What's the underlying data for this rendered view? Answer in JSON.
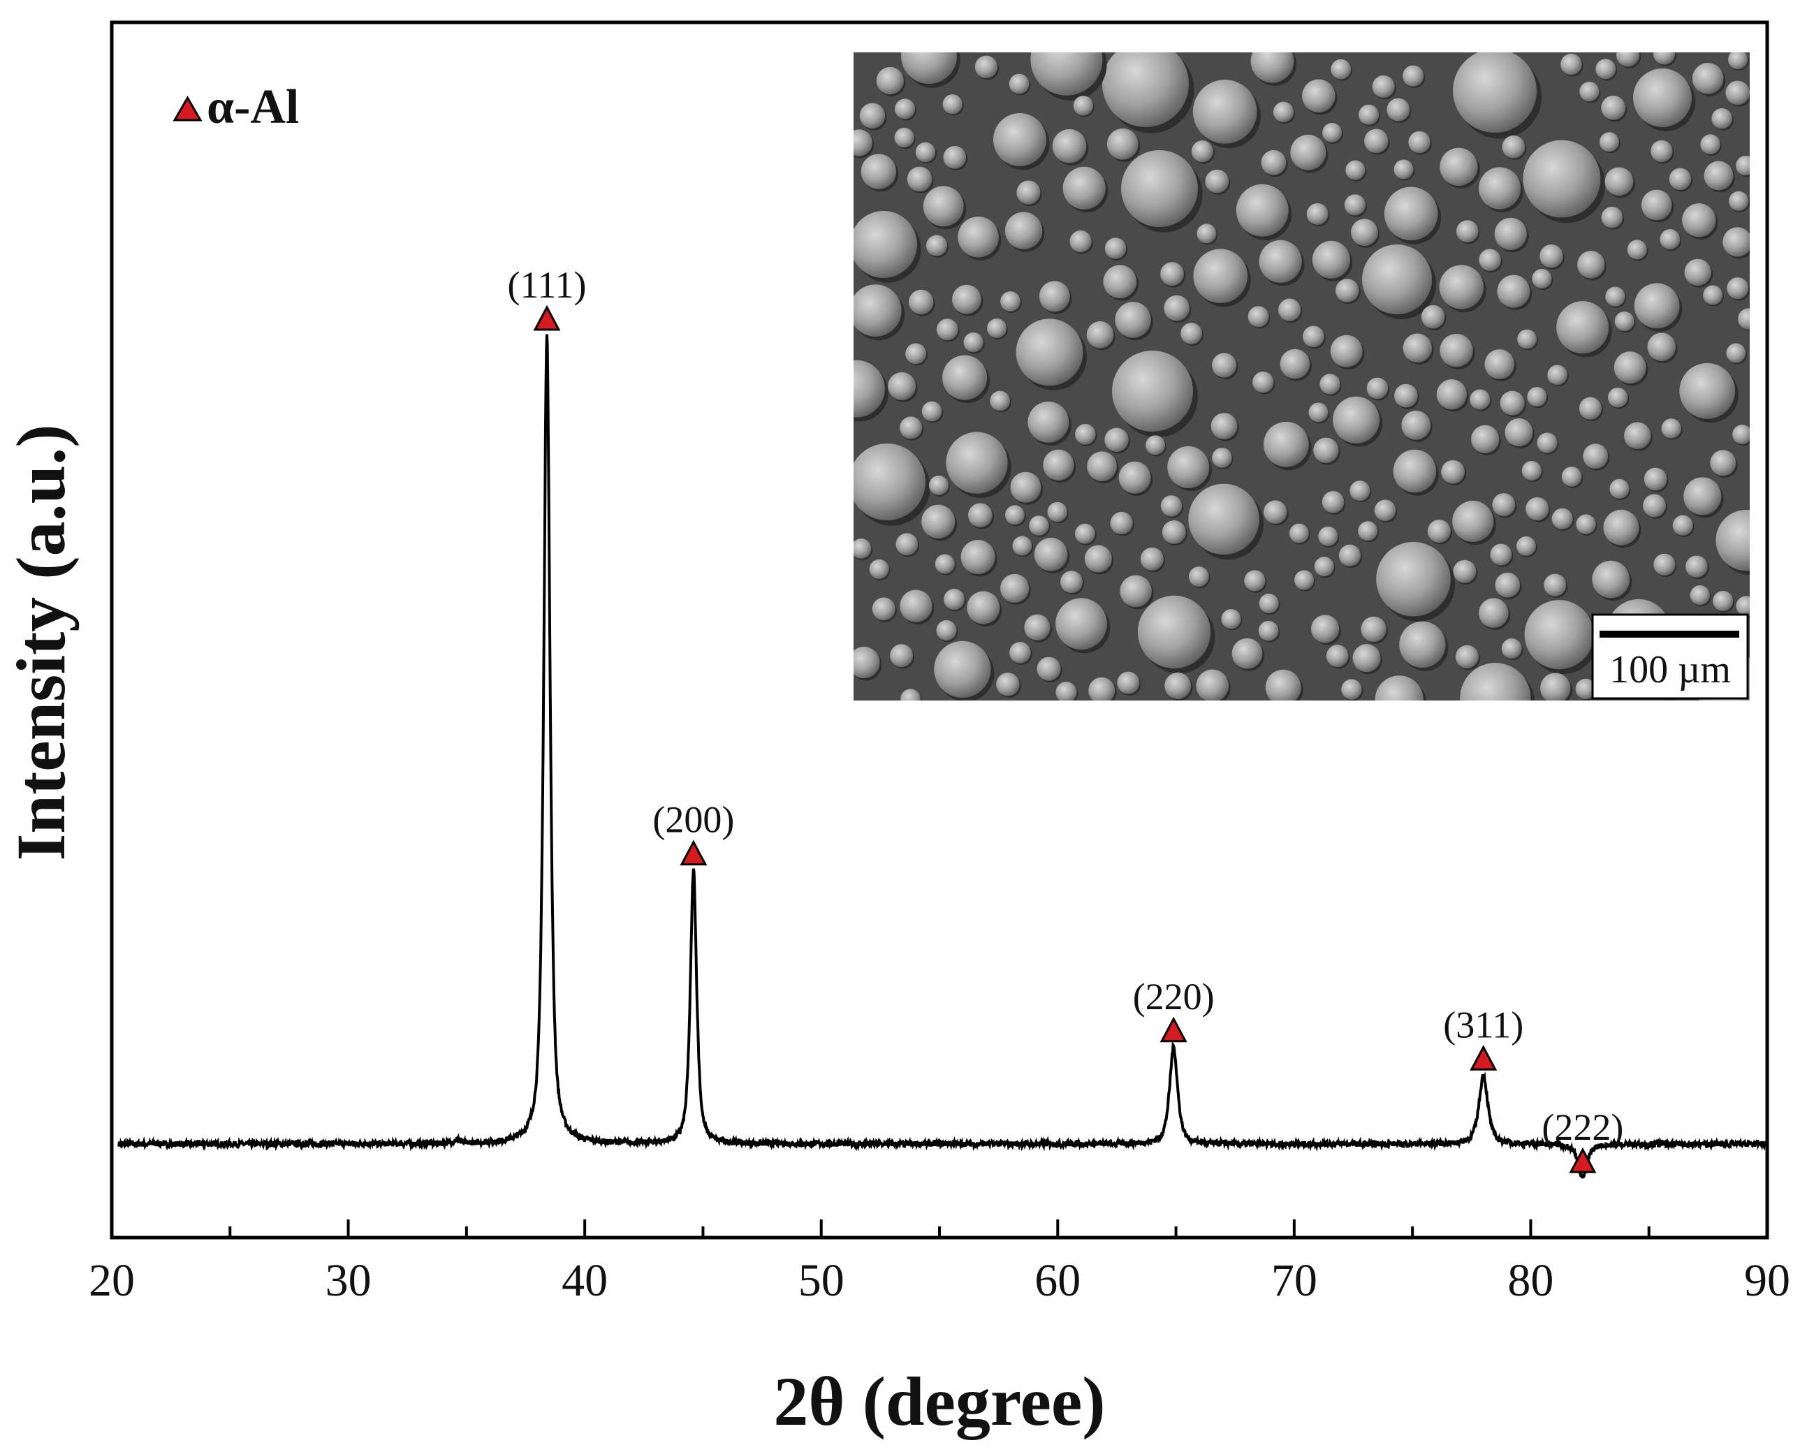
{
  "chart_data": {
    "type": "line",
    "xlabel": "2θ (degree)",
    "ylabel": "Intensity (a.u.)",
    "xlim": [
      20,
      90
    ],
    "x_ticks": [
      20,
      30,
      40,
      50,
      60,
      70,
      80,
      90
    ],
    "y_ticks_shown": false,
    "legend": {
      "label": "α-Al",
      "marker": "red-triangle-icon",
      "position": "top-left"
    },
    "marker_color": "#d71920",
    "line_color": "#000000",
    "baseline_intensity": 0.085,
    "series": [
      {
        "peaks": [
          {
            "label": "(111)",
            "two_theta": 38.4,
            "intensity": 1.0,
            "width": 0.3
          },
          {
            "label": "(200)",
            "two_theta": 44.6,
            "intensity": 0.395,
            "width": 0.3
          },
          {
            "label": "(220)",
            "two_theta": 64.9,
            "intensity": 0.195,
            "width": 0.38
          },
          {
            "label": "(311)",
            "two_theta": 78.0,
            "intensity": 0.163,
            "width": 0.42
          },
          {
            "label": "(222)",
            "two_theta": 82.2,
            "intensity": 0.047,
            "width": 0.42
          }
        ],
        "minor_bumps": [
          {
            "two_theta": 34.6,
            "intensity": 0.004
          }
        ]
      }
    ]
  },
  "inset": {
    "type": "SEM micrograph",
    "scale_bar_label": "100 µm",
    "background_color": "#4a4a4a",
    "particle_color": "#a8a8a8"
  }
}
